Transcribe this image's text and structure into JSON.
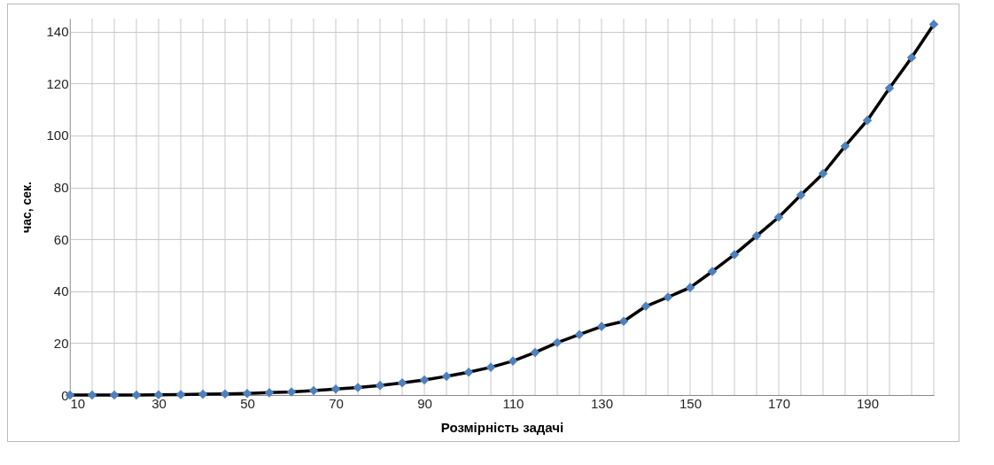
{
  "chart_data": {
    "type": "line",
    "xlabel": "Розмірність задачі",
    "ylabel": "час, сек.",
    "x": [
      10,
      15,
      20,
      25,
      30,
      35,
      40,
      45,
      50,
      55,
      60,
      65,
      70,
      75,
      80,
      85,
      90,
      95,
      100,
      105,
      110,
      115,
      120,
      125,
      130,
      135,
      140,
      145,
      150,
      155,
      160,
      165,
      170,
      175,
      180,
      185,
      190,
      195,
      200,
      205
    ],
    "series": [
      {
        "color": "#000000",
        "values": [
          0,
          0,
          0,
          0,
          0.1,
          0.2,
          0.3,
          0.4,
          0.6,
          0.9,
          1.2,
          1.7,
          2.3,
          2.9,
          3.7,
          4.7,
          5.8,
          7.2,
          8.8,
          10.7,
          13.1,
          16.4,
          20.2,
          23.3,
          26.4,
          28.4,
          34.2,
          37.7,
          41.4,
          47.6,
          54.1,
          61.3,
          68.5,
          77,
          85.3,
          95.9,
          105.8,
          118.2,
          130,
          142.8
        ]
      }
    ],
    "xlim": [
      10,
      205
    ],
    "xticks": [
      10,
      {
        "value": 15,
        "label": null
      },
      {
        "value": 20,
        "label": null
      },
      {
        "value": 25,
        "label": null
      },
      30,
      {
        "value": 35,
        "label": null
      },
      {
        "value": 40,
        "label": null
      },
      {
        "value": 45,
        "label": null
      },
      50,
      {
        "value": 55,
        "label": null
      },
      {
        "value": 60,
        "label": null
      },
      {
        "value": 65,
        "label": null
      },
      70,
      {
        "value": 75,
        "label": null
      },
      {
        "value": 80,
        "label": null
      },
      {
        "value": 85,
        "label": null
      },
      90,
      {
        "value": 95,
        "label": null
      },
      {
        "value": 100,
        "label": null
      },
      {
        "value": 105,
        "label": null
      },
      110,
      {
        "value": 115,
        "label": null
      },
      {
        "value": 120,
        "label": null
      },
      {
        "value": 125,
        "label": null
      },
      130,
      {
        "value": 135,
        "label": null
      },
      {
        "value": 140,
        "label": null
      },
      {
        "value": 145,
        "label": null
      },
      150,
      {
        "value": 155,
        "label": null
      },
      {
        "value": 160,
        "label": null
      },
      {
        "value": 165,
        "label": null
      },
      170,
      {
        "value": 175,
        "label": null
      },
      {
        "value": 180,
        "label": null
      },
      {
        "value": 185,
        "label": null
      },
      190,
      {
        "value": 195,
        "label": null
      },
      {
        "value": 200,
        "label": null
      },
      {
        "value": 205,
        "label": null
      }
    ],
    "ylim": [
      0,
      145
    ],
    "yticks": [
      0,
      20,
      40,
      60,
      80,
      100,
      120,
      140
    ],
    "grid": true,
    "marker": "diamond",
    "line_style": "solid"
  }
}
